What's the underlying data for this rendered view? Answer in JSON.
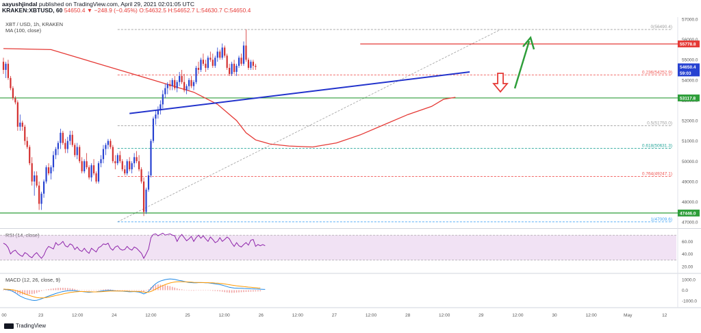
{
  "header": {
    "author": "aayushjindal",
    "published": "published on TradingView.com, April 29, 2021 02:01:05 UTC",
    "symbol": "KRAKEN:XBTUSD, 60",
    "change": "54650.4 ▼ −248.9 (−0.45%)",
    "ohlc": "O:54632.5 H:54652.7 L:54630.7 C:54650.4"
  },
  "legend": {
    "title": "XBT / USD, 1h, KRAKEN",
    "ma": "MA (100, close)",
    "rsi": "RSI (14, close)",
    "macd": "MACD (12, 26, close, 9)"
  },
  "footer": {
    "brand": "TradingView"
  },
  "chart_data": {
    "type": "candlestick",
    "ylim": [
      46700,
      57100
    ],
    "y_ticks": [
      47000,
      48000,
      49000,
      50000,
      51000,
      52000,
      53000,
      54000,
      55000,
      56000,
      57000
    ],
    "x_ticks": [
      "00",
      "23",
      "12:00",
      "24",
      "12:00",
      "25",
      "12:00",
      "26",
      "12:00",
      "27",
      "12:00",
      "28",
      "12:00",
      "29",
      "12:00",
      "30",
      "12:00",
      "May",
      "12"
    ],
    "colors": {
      "up": "#2742d1",
      "down": "#d32f2f",
      "ma": "#e53935",
      "fib": "#bdbdbd",
      "trend": "#2233cc",
      "arrow_green": "#2e9e3a",
      "arrow_red": "#e53935"
    },
    "candles": [
      [
        54900,
        55100,
        54300,
        54500
      ],
      [
        54500,
        54900,
        54100,
        54800
      ],
      [
        54800,
        55000,
        54000,
        54100
      ],
      [
        54100,
        54200,
        53500,
        53600
      ],
      [
        53600,
        53700,
        53000,
        53100
      ],
      [
        53100,
        53200,
        52800,
        52900
      ],
      [
        52900,
        53000,
        51500,
        51700
      ],
      [
        51700,
        52300,
        51500,
        51900
      ],
      [
        51900,
        52000,
        51500,
        51700
      ],
      [
        51700,
        51800,
        50800,
        51000
      ],
      [
        51000,
        51200,
        50600,
        50700
      ],
      [
        50700,
        50800,
        49800,
        49900
      ],
      [
        49900,
        50200,
        48800,
        49000
      ],
      [
        49000,
        49500,
        48300,
        49300
      ],
      [
        49300,
        49500,
        48700,
        48800
      ],
      [
        48800,
        49000,
        47600,
        47900
      ],
      [
        47900,
        48500,
        47600,
        48400
      ],
      [
        48400,
        49100,
        48200,
        49000
      ],
      [
        49000,
        49800,
        48900,
        49700
      ],
      [
        49700,
        49900,
        49300,
        49400
      ],
      [
        49400,
        49800,
        49100,
        49700
      ],
      [
        49700,
        50500,
        49500,
        50300
      ],
      [
        50300,
        50700,
        50100,
        50600
      ],
      [
        50600,
        51000,
        50300,
        50900
      ],
      [
        50900,
        51600,
        50600,
        51400
      ],
      [
        51400,
        51500,
        50800,
        50900
      ],
      [
        50900,
        51100,
        50400,
        50600
      ],
      [
        50600,
        51200,
        50400,
        51000
      ],
      [
        51000,
        51500,
        50800,
        51300
      ],
      [
        51300,
        51500,
        50700,
        50800
      ],
      [
        50800,
        50900,
        50200,
        50300
      ],
      [
        50300,
        50900,
        50100,
        50700
      ],
      [
        50700,
        50800,
        49900,
        50000
      ],
      [
        50000,
        50200,
        49400,
        49500
      ],
      [
        49500,
        50100,
        49400,
        50000
      ],
      [
        50000,
        50400,
        49600,
        49700
      ],
      [
        49700,
        49800,
        49100,
        49200
      ],
      [
        49200,
        49900,
        49000,
        49800
      ],
      [
        49800,
        50100,
        49300,
        49400
      ],
      [
        49400,
        49500,
        48900,
        49000
      ],
      [
        49000,
        50000,
        48900,
        49900
      ],
      [
        49900,
        50300,
        49700,
        50100
      ],
      [
        50100,
        50800,
        49900,
        50600
      ],
      [
        50600,
        50900,
        50300,
        50800
      ],
      [
        50800,
        51100,
        50600,
        51000
      ],
      [
        51000,
        51100,
        50600,
        50700
      ],
      [
        50700,
        50800,
        49900,
        50000
      ],
      [
        50000,
        50300,
        49600,
        49900
      ],
      [
        49900,
        50400,
        49800,
        50300
      ],
      [
        50300,
        50500,
        49900,
        50000
      ],
      [
        50000,
        50100,
        49500,
        49600
      ],
      [
        49600,
        49800,
        49300,
        49400
      ],
      [
        49400,
        50100,
        49300,
        50000
      ],
      [
        50000,
        50200,
        49500,
        49600
      ],
      [
        49600,
        50000,
        49400,
        49900
      ],
      [
        49900,
        50400,
        49700,
        50200
      ],
      [
        50200,
        50500,
        49900,
        50000
      ],
      [
        50000,
        50300,
        49500,
        49600
      ],
      [
        49600,
        49700,
        48900,
        49000
      ],
      [
        49000,
        49200,
        47300,
        47500
      ],
      [
        47500,
        48700,
        47400,
        48600
      ],
      [
        48600,
        49500,
        48500,
        49300
      ],
      [
        49300,
        51100,
        49200,
        51000
      ],
      [
        51000,
        52200,
        50900,
        52100
      ],
      [
        52100,
        52500,
        51800,
        52300
      ],
      [
        52300,
        52700,
        52100,
        52500
      ],
      [
        52500,
        53000,
        52300,
        52800
      ],
      [
        52800,
        53500,
        52600,
        53300
      ],
      [
        53300,
        53800,
        53100,
        53600
      ],
      [
        53600,
        53900,
        53300,
        53800
      ],
      [
        53800,
        54000,
        53500,
        53700
      ],
      [
        53700,
        54100,
        53500,
        54000
      ],
      [
        54000,
        54200,
        53500,
        53600
      ],
      [
        53600,
        54000,
        53400,
        53900
      ],
      [
        53900,
        54400,
        53700,
        54200
      ],
      [
        54200,
        54500,
        53800,
        53900
      ],
      [
        53900,
        54300,
        53400,
        53500
      ],
      [
        53500,
        53800,
        53300,
        53700
      ],
      [
        53700,
        54100,
        53500,
        54000
      ],
      [
        54000,
        54200,
        53600,
        53700
      ],
      [
        53700,
        54000,
        53500,
        53900
      ],
      [
        53900,
        54700,
        53800,
        54600
      ],
      [
        54600,
        54900,
        54300,
        54500
      ],
      [
        54500,
        55100,
        54400,
        55000
      ],
      [
        55000,
        55300,
        54700,
        54800
      ],
      [
        54800,
        55000,
        54400,
        54600
      ],
      [
        54600,
        55200,
        54500,
        55100
      ],
      [
        55100,
        55400,
        54900,
        55000
      ],
      [
        55000,
        55300,
        54600,
        54700
      ],
      [
        54700,
        55200,
        54600,
        55100
      ],
      [
        55100,
        55600,
        54900,
        55400
      ],
      [
        55400,
        55500,
        55000,
        55100
      ],
      [
        55100,
        55800,
        55000,
        55600
      ],
      [
        55600,
        55700,
        55100,
        55200
      ],
      [
        55200,
        55300,
        54500,
        54600
      ],
      [
        54600,
        54800,
        54200,
        54300
      ],
      [
        54300,
        54900,
        54200,
        54800
      ],
      [
        54800,
        55000,
        54300,
        54400
      ],
      [
        54400,
        54800,
        54200,
        54700
      ],
      [
        54700,
        55200,
        54600,
        55100
      ],
      [
        55100,
        55300,
        54700,
        54800
      ],
      [
        54800,
        55900,
        54700,
        55700
      ],
      [
        55700,
        56500,
        54900,
        55000
      ],
      [
        55000,
        55100,
        54500,
        54600
      ],
      [
        54600,
        55000,
        54500,
        54900
      ],
      [
        54900,
        55000,
        54500,
        54700
      ],
      [
        54700,
        54800,
        54500,
        54650
      ]
    ],
    "ma_path": [
      [
        0,
        55550
      ],
      [
        20,
        55500
      ],
      [
        40,
        54800
      ],
      [
        60,
        54100
      ],
      [
        80,
        53400
      ],
      [
        90,
        52800
      ],
      [
        98,
        52000
      ],
      [
        102,
        51400
      ],
      [
        106,
        51050
      ],
      [
        112,
        50850
      ],
      [
        120,
        50750
      ],
      [
        130,
        50700
      ],
      [
        140,
        50900
      ],
      [
        150,
        51300
      ],
      [
        160,
        51800
      ],
      [
        170,
        52300
      ],
      [
        180,
        52700
      ],
      [
        185,
        53050
      ],
      [
        190,
        53150
      ]
    ],
    "trendline": {
      "from": [
        53,
        52350
      ],
      "to": [
        196,
        54400
      ]
    },
    "fib_base": {
      "from": [
        48,
        47009.6
      ],
      "to": [
        209,
        56490.4
      ]
    },
    "fib_levels": [
      {
        "label": "0(56490.4)",
        "value": 56490.4,
        "color": "#9e9e9e"
      },
      {
        "label": "0.236(54252.9)",
        "value": 54252.9,
        "color": "#ef5350"
      },
      {
        "label": "0.5(51750.0)",
        "value": 51750.0,
        "color": "#9e9e9e"
      },
      {
        "label": "0.618(50631.3)",
        "value": 50631.3,
        "color": "#26a69a"
      },
      {
        "label": "0.764(49247.1)",
        "value": 49247.1,
        "color": "#ef5350"
      },
      {
        "label": "1(47009.6)",
        "value": 47009.6,
        "color": "#42a5f5"
      }
    ],
    "hlines": [
      {
        "label": "55778.8",
        "value": 55778.8,
        "color": "#e53935",
        "from": 150
      },
      {
        "label": "53117.8",
        "value": 53117.8,
        "color": "#2e9e3a",
        "from": 0
      },
      {
        "label": "47446.0",
        "value": 47446.0,
        "color": "#2e9e3a",
        "from": 0
      }
    ],
    "price_labels": [
      {
        "label": "54650.4",
        "value": 54650.4,
        "color": "#2742d1"
      },
      {
        "label": "59:03",
        "value": 54350,
        "color": "#2742d1"
      }
    ],
    "rsi": {
      "ylim": [
        10,
        80
      ],
      "ticks": [
        20,
        40,
        60
      ],
      "band": [
        30,
        70
      ],
      "values": [
        57,
        55,
        50,
        40,
        44,
        46,
        41,
        38,
        36,
        42,
        40,
        36,
        34,
        39,
        42,
        37,
        33,
        38,
        47,
        52,
        50,
        48,
        58,
        54,
        56,
        60,
        53,
        51,
        56,
        54,
        47,
        51,
        46,
        44,
        49,
        44,
        41,
        49,
        46,
        43,
        50,
        52,
        56,
        55,
        57,
        49,
        46,
        51,
        53,
        48,
        46,
        47,
        52,
        48,
        46,
        51,
        49,
        45,
        41,
        33,
        40,
        48,
        66,
        71,
        72,
        69,
        71,
        73,
        70,
        71,
        72,
        70,
        69,
        60,
        67,
        71,
        66,
        61,
        64,
        68,
        60,
        66,
        70,
        65,
        69,
        64,
        60,
        67,
        63,
        58,
        60,
        66,
        60,
        63,
        67,
        64,
        57,
        52,
        58,
        53,
        51,
        55,
        58,
        54,
        62,
        63,
        52,
        55,
        53,
        55,
        53
      ]
    },
    "macd": {
      "ylim": [
        -1500,
        1500
      ],
      "ticks": [
        1000,
        0,
        -1000
      ],
      "macd": [
        80,
        60,
        30,
        -20,
        -120,
        -250,
        -400,
        -550,
        -650,
        -750,
        -820,
        -880,
        -930,
        -960,
        -940,
        -880,
        -800,
        -720,
        -630,
        -550,
        -470,
        -390,
        -310,
        -240,
        -180,
        -130,
        -90,
        -60,
        -40,
        -30,
        -50,
        -80,
        -110,
        -130,
        -150,
        -180,
        -200,
        -180,
        -160,
        -150,
        -120,
        -90,
        -60,
        -30,
        -10,
        -20,
        -40,
        -60,
        -70,
        -80,
        -90,
        -110,
        -130,
        -150,
        -140,
        -130,
        -150,
        -180,
        -250,
        -350,
        -250,
        -100,
        150,
        400,
        600,
        750,
        850,
        920,
        980,
        1020,
        1050,
        1030,
        1000,
        950,
        900,
        870,
        820,
        760,
        720,
        700,
        680,
        690,
        700,
        710,
        700,
        690,
        680,
        650,
        620,
        590,
        560,
        520,
        470,
        400,
        330,
        270,
        230,
        200,
        190,
        180,
        170,
        160,
        150,
        140,
        130,
        120,
        110,
        100,
        90,
        80,
        70
      ],
      "signal": [
        100,
        90,
        80,
        60,
        30,
        -10,
        -80,
        -160,
        -250,
        -340,
        -420,
        -500,
        -570,
        -630,
        -680,
        -710,
        -720,
        -710,
        -690,
        -650,
        -600,
        -550,
        -500,
        -450,
        -400,
        -350,
        -300,
        -260,
        -220,
        -190,
        -160,
        -140,
        -130,
        -130,
        -130,
        -140,
        -150,
        -155,
        -160,
        -160,
        -155,
        -145,
        -130,
        -110,
        -95,
        -85,
        -80,
        -78,
        -77,
        -78,
        -80,
        -85,
        -92,
        -100,
        -107,
        -112,
        -118,
        -128,
        -148,
        -180,
        -195,
        -180,
        -120,
        -20,
        100,
        220,
        330,
        430,
        520,
        600,
        670,
        720,
        760,
        780,
        790,
        790,
        780,
        770,
        760,
        745,
        730,
        720,
        712,
        710,
        708,
        705,
        700,
        690,
        680,
        665,
        650,
        630,
        610,
        580,
        545,
        510,
        475,
        440,
        410,
        385,
        360,
        335,
        310,
        290,
        270,
        250,
        230,
        210,
        195
      ]
    }
  }
}
